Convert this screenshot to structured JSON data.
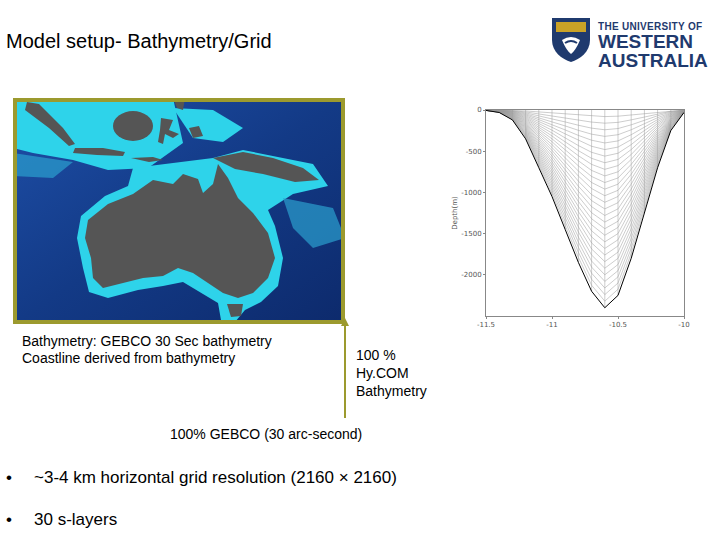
{
  "slide": {
    "title": "Model setup- Bathymetry/Grid",
    "logo": [
      "THE UNIVERSITY OF",
      "WESTERN",
      "AUSTRALIA"
    ],
    "map_caption": [
      "Bathymetry: GEBCO 30 Sec bathymetry",
      "Coastline derived from bathymetry"
    ],
    "hycom_note": [
      "100 %",
      "Hy.COM",
      "Bathymetry"
    ],
    "gebco_note": "100% GEBCO (30 arc-second)",
    "bullets": [
      "~3-4 km  horizontal grid  resolution (2160 × 2160)",
      "30 s-layers"
    ]
  },
  "chart_data": {
    "type": "line",
    "y_label": "Depth(m)",
    "x": [
      -11.5,
      -11.4,
      -11.3,
      -11.2,
      -11.1,
      -11.0,
      -10.9,
      -10.8,
      -10.7,
      -10.6,
      -10.5,
      -10.4,
      -10.3,
      -10.2,
      -10.1,
      -10.0
    ],
    "values": [
      -5,
      -30,
      -120,
      -350,
      -700,
      -1050,
      -1450,
      -1850,
      -2200,
      -2400,
      -2250,
      -1800,
      -1250,
      -700,
      -250,
      -30
    ],
    "color": "#000000",
    "xlim": [
      -11.5,
      -10
    ],
    "xticks": [
      -11.5,
      -11,
      -10.5,
      -10
    ],
    "ylim": [
      -2500,
      0
    ],
    "yticks": [
      0,
      -500,
      -1000,
      -1500,
      -2000
    ],
    "grid": false
  }
}
